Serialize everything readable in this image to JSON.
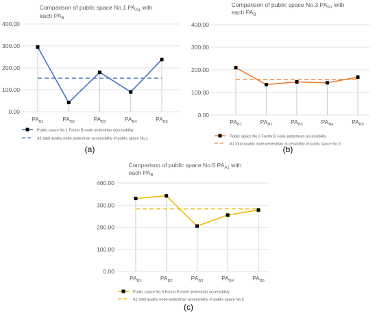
{
  "panel_labels": [
    "(a)",
    "(b)",
    "(c)"
  ],
  "colors": {
    "axis_text": "#595959",
    "title": "#595959",
    "grid": "#d9d9d9",
    "drop": "#bfbfbf",
    "marker": "#000000"
  },
  "chart_data": [
    {
      "type": "line",
      "title_line1": [
        "Comparison of public space No.1 PA",
        "A1",
        " with"
      ],
      "title_line2": [
        "each PA",
        "B",
        ""
      ],
      "categories": [
        "PAB1",
        "PAB2",
        "PAB3",
        "PAB4",
        "PAB5"
      ],
      "category_main": "PA",
      "category_subs": [
        "B1",
        "B2",
        "B3",
        "B4",
        "B5"
      ],
      "yticks": [
        "0.00",
        "100.00",
        "200.00",
        "300.00",
        "400.00"
      ],
      "ylim": [
        0,
        400
      ],
      "series": [
        {
          "name": "Public space No.1 Factor B node pedestrian accessibility",
          "values": [
            295,
            42,
            180,
            90,
            238
          ],
          "color": "#4472c4",
          "style": "solid-marker"
        },
        {
          "name": "A1 total quality node pedestrian accessibility of public space No.1",
          "values": [
            153,
            153,
            153,
            153,
            153
          ],
          "color": "#4472c4",
          "style": "dashed"
        }
      ]
    },
    {
      "type": "line",
      "title_line1": [
        "Comparison of public space No.3 PA",
        "A1",
        " with"
      ],
      "title_line2": [
        "each PA",
        "B",
        ""
      ],
      "categories": [
        "PAB1",
        "PAB2",
        "PAB3",
        "PAB4",
        "PAB5"
      ],
      "category_main": "PA",
      "category_subs": [
        "B1",
        "B2",
        "B3",
        "B4",
        "B5"
      ],
      "yticks": [
        "0.00",
        "100.00",
        "200.00",
        "300.00",
        "400.00"
      ],
      "ylim": [
        0,
        400
      ],
      "series": [
        {
          "name": "Public space No.3 Factor B node pedestrian accessibility",
          "values": [
            210,
            135,
            147,
            143,
            168
          ],
          "color": "#ed7d31",
          "style": "solid-marker"
        },
        {
          "name": "A1 total quality node pedestrian accessibility of public space No.3",
          "values": [
            158,
            158,
            158,
            158,
            158
          ],
          "color": "#ed7d31",
          "style": "dashed"
        }
      ]
    },
    {
      "type": "line",
      "title_line1": [
        "Comparison of public space No.5 PA",
        "A1",
        " with"
      ],
      "title_line2": [
        "each PA",
        "B",
        ""
      ],
      "categories": [
        "PAB1",
        "PAB2",
        "PAB3",
        "PAB4",
        "PAB5"
      ],
      "category_main": "PA",
      "category_subs": [
        "B1",
        "B2",
        "B3",
        "B4",
        "B5"
      ],
      "yticks": [
        "0.00",
        "100.00",
        "200.00",
        "300.00",
        "400.00"
      ],
      "ylim": [
        0,
        400
      ],
      "series": [
        {
          "name": "Public space No.5 Factor B node pedestrian accessibility",
          "values": [
            330,
            342,
            205,
            255,
            278
          ],
          "color": "#f0b800",
          "style": "solid-marker"
        },
        {
          "name": "A1 total quality node pedestrian accessibility of public space No.5",
          "values": [
            283,
            283,
            283,
            283,
            283
          ],
          "color": "#f0b800",
          "style": "dashed"
        }
      ]
    }
  ]
}
